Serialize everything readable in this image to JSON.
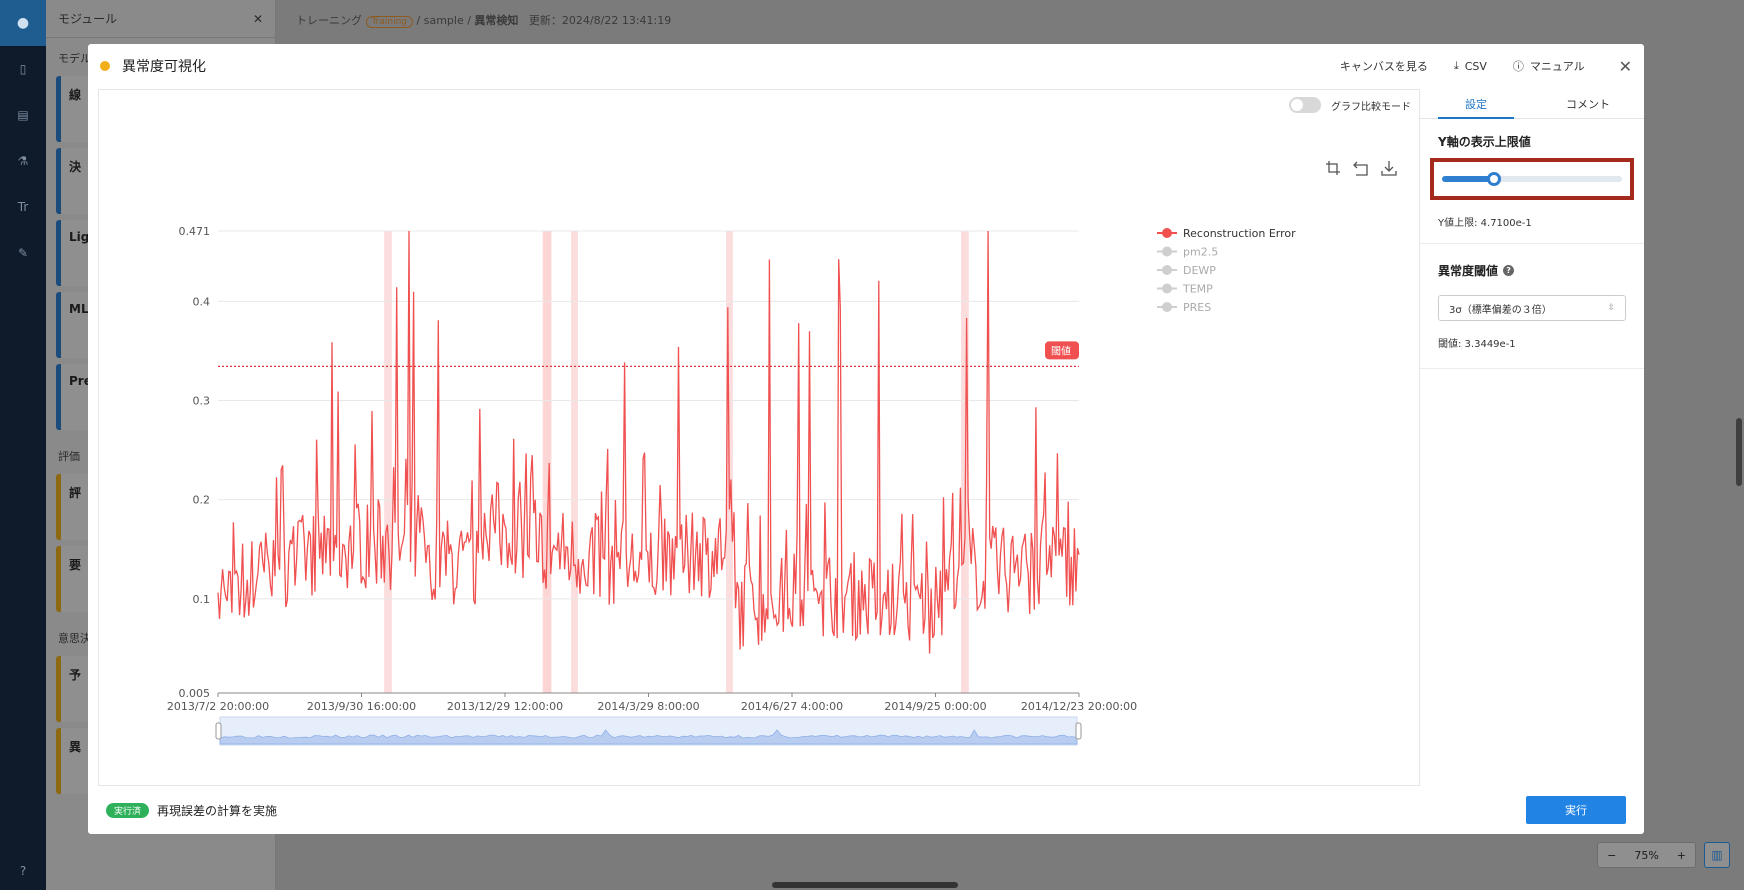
{
  "background": {
    "module_panel": {
      "title": "モジュール",
      "section_model": "モデル",
      "section_eval": "評価",
      "section_decision": "意思決",
      "cards": [
        "線",
        "決",
        "Lig",
        "ML",
        "Pre",
        "評",
        "要",
        "予",
        "異"
      ]
    },
    "breadcrumb": {
      "training": "トレーニング",
      "badge": "Training",
      "path": "/ sample /",
      "current": "異常検知",
      "updated": "更新：2024/8/22 13:41:19"
    },
    "zoom": {
      "minus": "−",
      "level": "75%",
      "plus": "+"
    }
  },
  "modal": {
    "title": "異常度可視化",
    "status_color": "#f1b01a",
    "actions": {
      "canvas": "キャンバスを見る",
      "csv": "CSV",
      "manual": "マニュアル"
    },
    "compare_mode_label": "グラフ比較モード",
    "tabs": {
      "settings": "設定",
      "comment": "コメント"
    },
    "y_limit": {
      "title": "Y軸の表示上限値",
      "slider_fraction": 0.29,
      "value_text": "Y値上限: 4.7100e-1"
    },
    "threshold": {
      "title": "異常度閾値",
      "select_value": "3σ（標準偏差の３倍）",
      "value_text": "閾値: 3.3449e-1"
    },
    "footer": {
      "badge": "実行済",
      "message": "再現誤差の計算を実施",
      "run": "実行"
    }
  },
  "chart_data": {
    "type": "line",
    "xlabel": "",
    "ylabel": "",
    "ylim": [
      0.005,
      0.471
    ],
    "y_ticks": [
      "0.005",
      "0.1",
      "0.2",
      "0.3",
      "0.4",
      "0.471"
    ],
    "x_ticks": [
      "2013/7/2 20:00:00",
      "2013/9/30 16:00:00",
      "2013/12/29 12:00:00",
      "2014/3/29 8:00:00",
      "2014/6/27 4:00:00",
      "2014/9/25 0:00:00",
      "2014/12/23 20:00:00"
    ],
    "threshold": 0.33449,
    "threshold_label": "閾値",
    "legend": [
      {
        "name": "Reconstruction Error",
        "active": true
      },
      {
        "name": "pm2.5",
        "active": false
      },
      {
        "name": "DEWP",
        "active": false
      },
      {
        "name": "TEMP",
        "active": false
      },
      {
        "name": "PRES",
        "active": false
      }
    ],
    "series_color": "#f05050",
    "anomaly_band_fractions": [
      [
        0.193,
        0.202
      ],
      [
        0.378,
        0.382
      ],
      [
        0.381,
        0.385
      ],
      [
        0.378,
        0.385
      ],
      [
        0.38,
        0.387
      ],
      [
        0.379,
        0.381
      ],
      [
        0.381,
        0.386
      ],
      [
        0.382,
        0.385
      ],
      [
        0.38,
        0.384
      ],
      [
        0.377,
        0.386
      ],
      [
        0.378,
        0.387
      ],
      [
        0.38,
        0.387
      ],
      [
        0.378,
        0.386
      ],
      [
        0.381,
        0.387
      ],
      [
        0.38,
        0.384
      ],
      [
        0.41,
        0.418
      ],
      [
        0.59,
        0.598
      ],
      [
        0.863,
        0.872
      ]
    ]
  }
}
